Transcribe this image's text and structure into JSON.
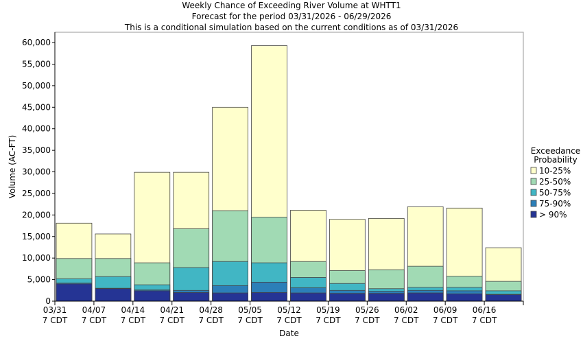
{
  "chart_data": {
    "type": "bar",
    "title": [
      "Weekly Chance of Exceeding River Volume at WHTT1",
      "Forecast for the period 03/31/2026 - 06/29/2026",
      "This is a conditional simulation based on the current conditions as of 03/31/2026"
    ],
    "x_label": "Date",
    "y_label": "Volume (AC-FT)",
    "legend_title": [
      "Exceedance",
      "Probability"
    ],
    "legend": "right",
    "categories": [
      [
        "03/31",
        "7 CDT"
      ],
      [
        "04/07",
        "7 CDT"
      ],
      [
        "04/14",
        "7 CDT"
      ],
      [
        "04/21",
        "7 CDT"
      ],
      [
        "04/28",
        "7 CDT"
      ],
      [
        "05/05",
        "7 CDT"
      ],
      [
        "05/12",
        "7 CDT"
      ],
      [
        "05/19",
        "7 CDT"
      ],
      [
        "05/26",
        "7 CDT"
      ],
      [
        "06/02",
        "7 CDT"
      ],
      [
        "06/09",
        "7 CDT"
      ],
      [
        "06/16",
        "7 CDT"
      ]
    ],
    "series": [
      {
        "name": "10-25%",
        "color": "#ffffcc",
        "values": [
          18100,
          15600,
          29900,
          29900,
          45000,
          59300,
          21100,
          19000,
          19200,
          21900,
          21600,
          12400
        ]
      },
      {
        "name": "25-50%",
        "color": "#a1dab4",
        "values": [
          9900,
          9900,
          8900,
          16800,
          21000,
          19500,
          9200,
          7100,
          7300,
          8100,
          5800,
          4600
        ]
      },
      {
        "name": "50-75%",
        "color": "#41b6c4",
        "values": [
          5200,
          5700,
          3800,
          7800,
          9200,
          8900,
          5500,
          4100,
          2900,
          3200,
          3200,
          2400
        ]
      },
      {
        "name": "75-90%",
        "color": "#2c7fb8",
        "values": [
          4200,
          3000,
          2600,
          2500,
          3600,
          4400,
          3100,
          2500,
          2300,
          2500,
          2400,
          1600
        ]
      },
      {
        "name": "> 90%",
        "color": "#253494",
        "values": [
          4000,
          2900,
          2400,
          2000,
          1900,
          2000,
          1900,
          1800,
          1800,
          1900,
          1700,
          1500
        ]
      }
    ],
    "ylim": [
      0,
      62400
    ],
    "yticks": [
      0,
      {
        "value": 5000,
        "label": "5,000"
      },
      {
        "value": 10000,
        "label": "10,000"
      },
      {
        "value": 15000,
        "label": "15,000"
      },
      {
        "value": 20000,
        "label": "20,000"
      },
      {
        "value": 25000,
        "label": "25,000"
      },
      {
        "value": 30000,
        "label": "30,000"
      },
      {
        "value": 35000,
        "label": "35,000"
      },
      {
        "value": 40000,
        "label": "40,000"
      },
      {
        "value": 45000,
        "label": "45,000"
      },
      {
        "value": 50000,
        "label": "50,000"
      },
      {
        "value": 55000,
        "label": "55,000"
      },
      {
        "value": 60000,
        "label": "60,000"
      }
    ],
    "grid": false
  }
}
